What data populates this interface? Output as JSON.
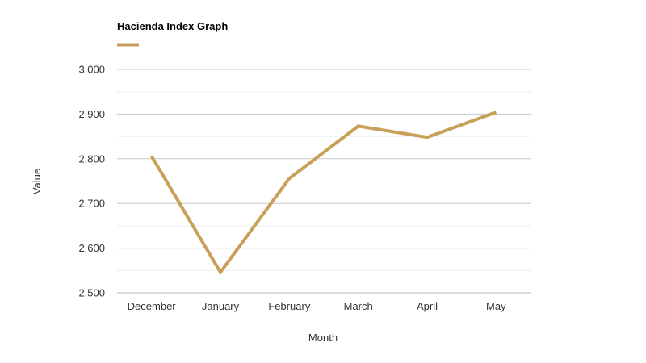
{
  "chart_data": {
    "type": "line",
    "title": "",
    "categories": [
      "December",
      "January",
      "February",
      "March",
      "April",
      "May"
    ],
    "series": [
      {
        "name": "Hacienda Index Graph",
        "color": "#C9A05A",
        "values": [
          2806,
          2546,
          2756,
          2873,
          2848,
          2904
        ]
      }
    ],
    "xlabel": "Month",
    "ylabel": "Value",
    "ylim": [
      2500,
      3000
    ],
    "yticks": [
      "2,500",
      "2,600",
      "2,700",
      "2,800",
      "2,900",
      "3,000"
    ],
    "ytick_values": [
      2500,
      2600,
      2700,
      2800,
      2900,
      3000
    ],
    "grid": true,
    "legend": "top-left",
    "colors": {
      "gridline": "#C8C8C8",
      "minor_gridline": "#EDEDED",
      "axis": "#BBBBBB"
    }
  }
}
